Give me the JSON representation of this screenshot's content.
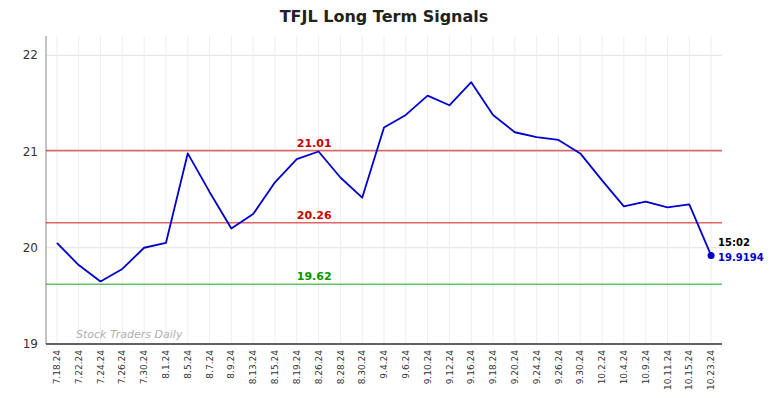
{
  "chart_data": {
    "type": "line",
    "title": "TFJL Long Term Signals",
    "categories": [
      "7.18.24",
      "7.22.24",
      "7.24.24",
      "7.26.24",
      "7.30.24",
      "8.1.24",
      "8.5.24",
      "8.7.24",
      "8.9.24",
      "8.13.24",
      "8.15.24",
      "8.19.24",
      "8.26.24",
      "8.28.24",
      "8.30.24",
      "9.4.24",
      "9.6.24",
      "9.10.24",
      "9.12.24",
      "9.16.24",
      "9.18.24",
      "9.20.24",
      "9.24.24",
      "9.26.24",
      "9.30.24",
      "10.2.24",
      "10.4.24",
      "10.9.24",
      "10.11.24",
      "10.15.24",
      "10.23.24"
    ],
    "values": [
      20.05,
      19.82,
      19.65,
      19.78,
      20.0,
      20.05,
      20.98,
      20.58,
      20.2,
      20.35,
      20.68,
      20.92,
      21.0,
      20.73,
      20.52,
      21.25,
      21.38,
      21.58,
      21.48,
      21.72,
      21.38,
      21.2,
      21.15,
      21.12,
      20.98,
      20.7,
      20.43,
      20.48,
      20.42,
      20.45,
      19.92
    ],
    "color": "#0000cc",
    "hlines": [
      {
        "value": 21.01,
        "label": "21.01",
        "color": "#cc0000"
      },
      {
        "value": 20.26,
        "label": "20.26",
        "color": "#cc0000"
      },
      {
        "value": 19.62,
        "label": "19.62",
        "color": "#009900"
      }
    ],
    "last_point": {
      "value": 19.9194,
      "label": "19.9194",
      "time": "15:02"
    },
    "watermark": "Stock Traders Daily",
    "ylim": [
      19.0,
      22.2
    ],
    "yticks": [
      19,
      20,
      21,
      22
    ],
    "grid": true
  }
}
